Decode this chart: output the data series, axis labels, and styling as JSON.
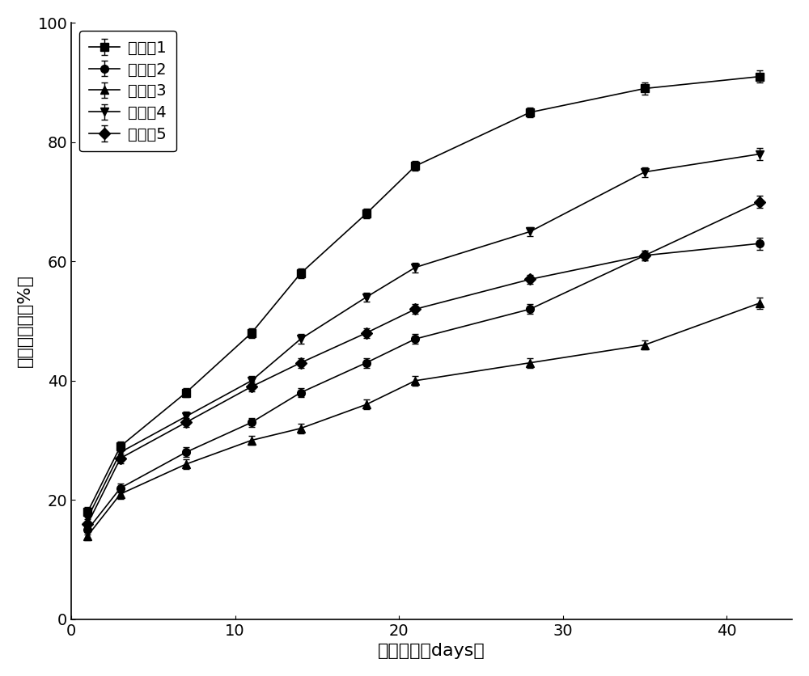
{
  "x_values": [
    1,
    3,
    7,
    11,
    14,
    18,
    21,
    28,
    35,
    42
  ],
  "series": [
    {
      "name": "实验组1",
      "marker": "s",
      "y": [
        18,
        29,
        38,
        48,
        58,
        68,
        76,
        85,
        89,
        91
      ],
      "yerr": [
        0.8,
        0.8,
        0.8,
        0.8,
        0.8,
        0.8,
        0.8,
        0.8,
        1.0,
        1.0
      ]
    },
    {
      "name": "实验组2",
      "marker": "o",
      "y": [
        15,
        22,
        28,
        33,
        38,
        43,
        47,
        52,
        61,
        63
      ],
      "yerr": [
        0.8,
        0.8,
        0.8,
        0.8,
        0.8,
        0.8,
        0.8,
        0.8,
        0.8,
        1.0
      ]
    },
    {
      "name": "实验组3",
      "marker": "^",
      "y": [
        14,
        21,
        26,
        30,
        32,
        36,
        40,
        43,
        46,
        53
      ],
      "yerr": [
        0.8,
        0.8,
        0.8,
        0.8,
        0.8,
        0.8,
        0.8,
        0.8,
        0.8,
        1.0
      ]
    },
    {
      "name": "实验组4",
      "marker": "v",
      "y": [
        17,
        28,
        34,
        40,
        47,
        54,
        59,
        65,
        75,
        78
      ],
      "yerr": [
        0.8,
        0.8,
        0.8,
        0.8,
        0.8,
        0.8,
        0.8,
        0.8,
        0.8,
        1.0
      ]
    },
    {
      "name": "实验组5",
      "marker": "D",
      "y": [
        16,
        27,
        33,
        39,
        43,
        48,
        52,
        57,
        61,
        70
      ],
      "yerr": [
        0.8,
        0.8,
        0.8,
        0.8,
        0.8,
        0.8,
        0.8,
        0.8,
        0.8,
        1.0
      ]
    }
  ],
  "xlabel": "释放时间（days）",
  "ylabel": "累积释放率（%）",
  "xlim": [
    0,
    44
  ],
  "ylim": [
    0,
    100
  ],
  "xticks": [
    0,
    10,
    20,
    30,
    40
  ],
  "yticks": [
    0,
    20,
    40,
    60,
    80,
    100
  ],
  "line_color": "black",
  "marker_color": "black",
  "marker_size": 7,
  "linewidth": 1.2,
  "legend_fontsize": 14,
  "axis_fontsize": 16,
  "tick_fontsize": 14,
  "background_color": "#ffffff",
  "figure_facecolor": "#ffffff"
}
